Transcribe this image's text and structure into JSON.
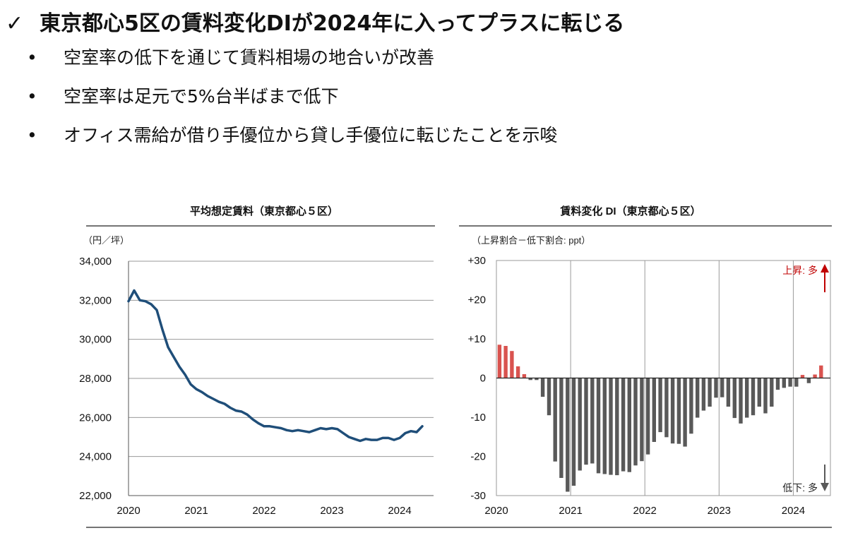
{
  "headline": {
    "check": "✓",
    "text": "東京都心5区の賃料変化DIが2024年に入ってプラスに転じる"
  },
  "bullets": [
    {
      "marker": "•",
      "text": "空室率の低下を通じて賃料相場の地合いが改善"
    },
    {
      "marker": "•",
      "text": "空室率は足元で5%台半ばまで低下"
    },
    {
      "marker": "•",
      "text": "オフィス需給が借り手優位から貸し手優位に転じたことを示唆"
    }
  ],
  "colors": {
    "line": "#1F4E79",
    "positive_bar": "#D9534F",
    "negative_bar": "#595959",
    "up_arrow": "#C00000",
    "down_arrow": "#595959",
    "grid": "#9a9a9a"
  },
  "chart_data": [
    {
      "type": "line",
      "title": "平均想定賃料（東京都心５区）",
      "unit_label": "（円／坪）",
      "ylim": [
        22000,
        34000
      ],
      "yticks": [
        22000,
        24000,
        26000,
        28000,
        30000,
        32000,
        34000
      ],
      "ytick_labels": [
        "22,000",
        "24,000",
        "26,000",
        "28,000",
        "30,000",
        "32,000",
        "34,000"
      ],
      "xlim": [
        2020,
        2024.5
      ],
      "xticks": [
        2020,
        2021,
        2022,
        2023,
        2024
      ],
      "xtick_labels": [
        "2020",
        "2021",
        "2022",
        "2023",
        "2024"
      ],
      "grid": "horizontal",
      "series": [
        {
          "x": [
            2020.0,
            2020.083,
            2020.167,
            2020.25,
            2020.333,
            2020.417,
            2020.5,
            2020.583,
            2020.667,
            2020.75,
            2020.833,
            2020.917,
            2021.0,
            2021.083,
            2021.167,
            2021.25,
            2021.333,
            2021.417,
            2021.5,
            2021.583,
            2021.667,
            2021.75,
            2021.833,
            2021.917,
            2022.0,
            2022.083,
            2022.167,
            2022.25,
            2022.333,
            2022.417,
            2022.5,
            2022.583,
            2022.667,
            2022.75,
            2022.833,
            2022.917,
            2023.0,
            2023.083,
            2023.167,
            2023.25,
            2023.333,
            2023.417,
            2023.5,
            2023.583,
            2023.667,
            2023.75,
            2023.833,
            2023.917,
            2024.0,
            2024.083,
            2024.167,
            2024.25,
            2024.333
          ],
          "values": [
            31950,
            32500,
            32000,
            31950,
            31800,
            31500,
            30500,
            29600,
            29100,
            28600,
            28200,
            27700,
            27450,
            27300,
            27100,
            26950,
            26800,
            26700,
            26500,
            26350,
            26300,
            26150,
            25900,
            25700,
            25550,
            25550,
            25500,
            25450,
            25350,
            25300,
            25350,
            25300,
            25250,
            25350,
            25450,
            25400,
            25450,
            25400,
            25200,
            25000,
            24900,
            24800,
            24900,
            24850,
            24850,
            24950,
            24950,
            24850,
            24950,
            25200,
            25300,
            25250,
            25550
          ]
        }
      ]
    },
    {
      "type": "bar",
      "title": "賃料変化 DI（東京都心５区）",
      "unit_label": "（上昇割合－低下割合: ppt）",
      "ylim": [
        -30,
        30
      ],
      "yticks": [
        -30,
        -20,
        -10,
        0,
        10,
        20,
        30
      ],
      "ytick_labels": [
        "-30",
        "-20",
        "-10",
        "0",
        "+10",
        "+20",
        "+30"
      ],
      "xlim": [
        2020,
        2024.5
      ],
      "xticks": [
        2020,
        2021,
        2022,
        2023,
        2024
      ],
      "xtick_labels": [
        "2020",
        "2021",
        "2022",
        "2023",
        "2024"
      ],
      "grid": "vertical",
      "annotations": {
        "up": "上昇: 多",
        "down": "低下: 多"
      },
      "series": [
        {
          "x": [
            2020.0,
            2020.083,
            2020.167,
            2020.25,
            2020.333,
            2020.417,
            2020.5,
            2020.583,
            2020.667,
            2020.75,
            2020.833,
            2020.917,
            2021.0,
            2021.083,
            2021.167,
            2021.25,
            2021.333,
            2021.417,
            2021.5,
            2021.583,
            2021.667,
            2021.75,
            2021.833,
            2021.917,
            2022.0,
            2022.083,
            2022.167,
            2022.25,
            2022.333,
            2022.417,
            2022.5,
            2022.583,
            2022.667,
            2022.75,
            2022.833,
            2022.917,
            2023.0,
            2023.083,
            2023.167,
            2023.25,
            2023.333,
            2023.417,
            2023.5,
            2023.583,
            2023.667,
            2023.75,
            2023.833,
            2023.917,
            2024.0,
            2024.083,
            2024.167,
            2024.25,
            2024.333
          ],
          "values": [
            8.5,
            8.2,
            6.9,
            3.0,
            1.0,
            -0.5,
            -0.5,
            -4.8,
            -9.5,
            -21.3,
            -25.5,
            -29.0,
            -27.5,
            -23.6,
            -22.1,
            -21.8,
            -24.3,
            -24.5,
            -24.7,
            -24.8,
            -23.8,
            -24.0,
            -22.3,
            -21.2,
            -19.5,
            -16.3,
            -13.8,
            -15.1,
            -16.7,
            -16.8,
            -17.5,
            -14.2,
            -10.1,
            -8.3,
            -7.3,
            -5.0,
            -4.9,
            -7.3,
            -10.2,
            -11.6,
            -10.1,
            -9.5,
            -7.3,
            -9.0,
            -7.3,
            -3.0,
            -2.5,
            -2.2,
            -2.2,
            0.8,
            -1.3,
            0.9,
            3.2
          ]
        }
      ]
    }
  ]
}
